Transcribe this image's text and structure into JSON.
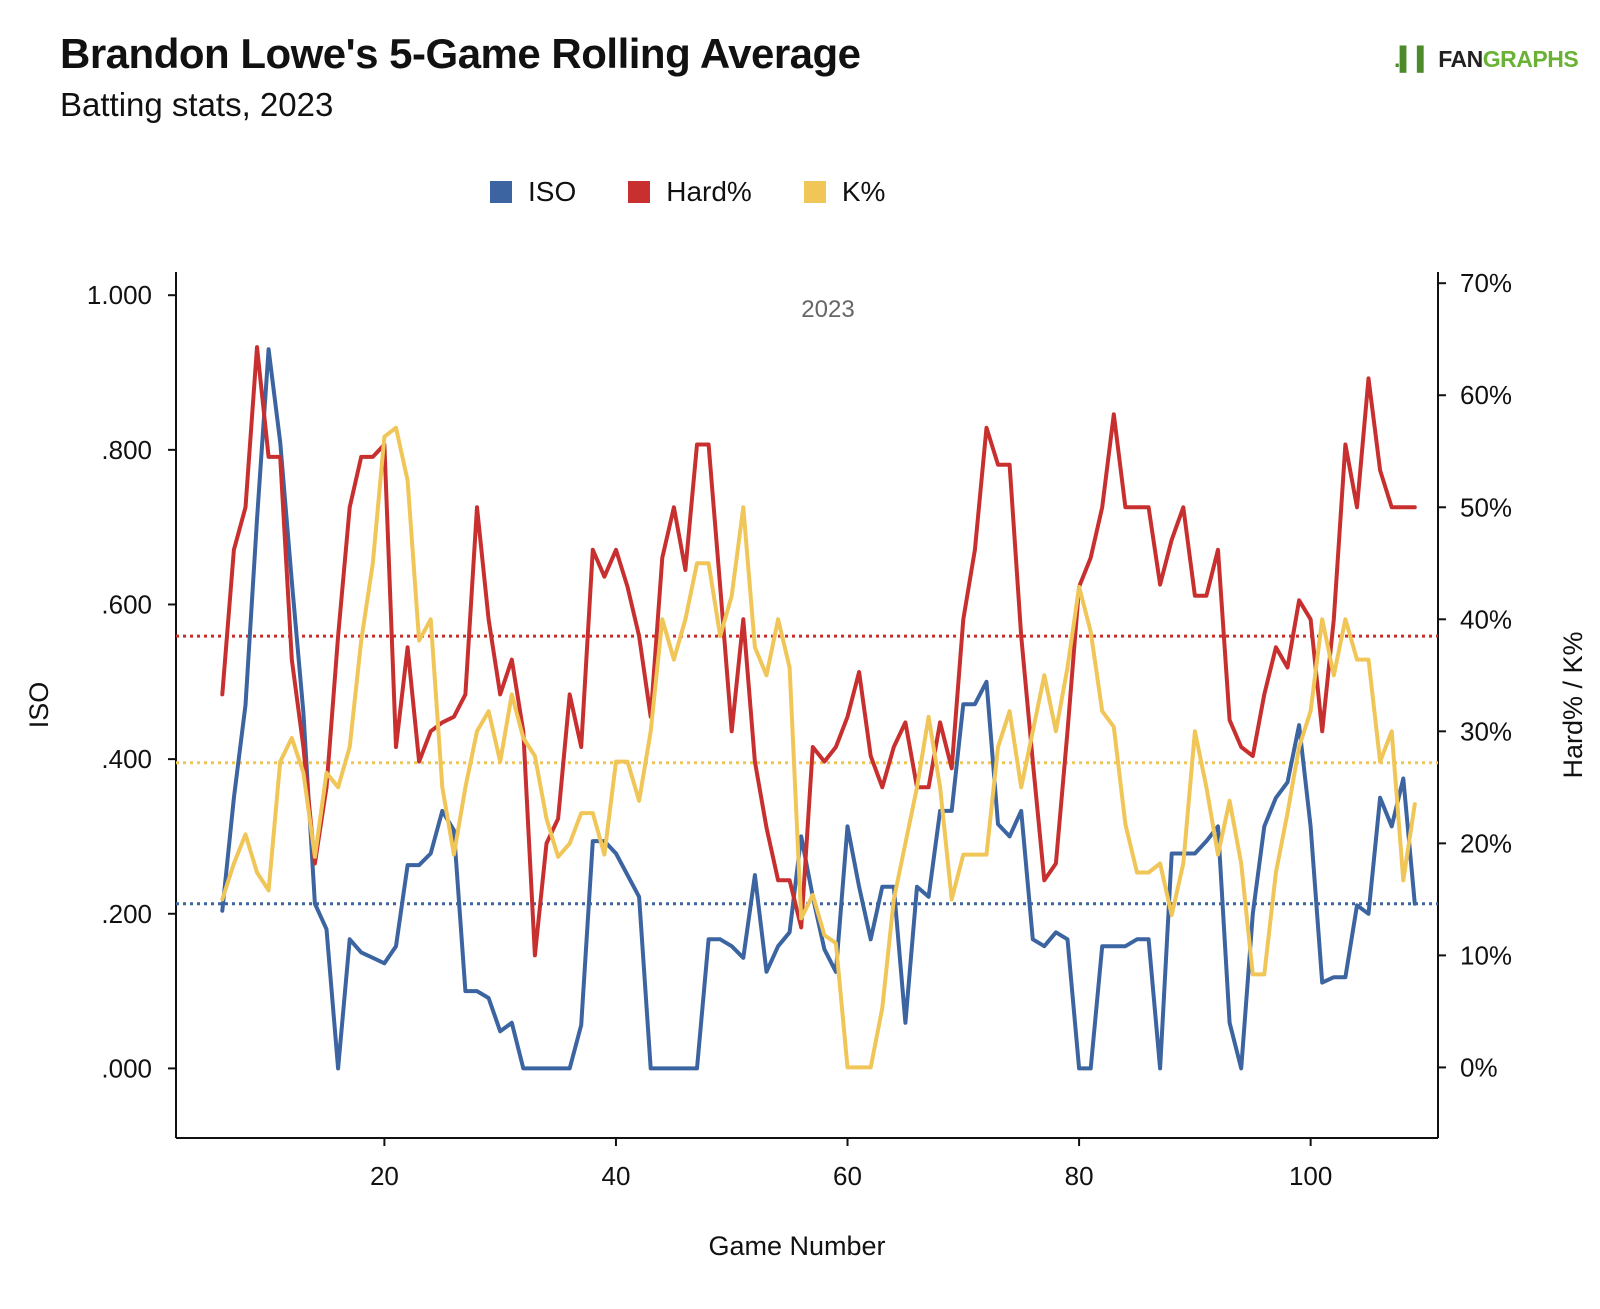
{
  "header": {
    "title": "Brandon Lowe's 5-Game Rolling Average",
    "subtitle": "Batting stats, 2023",
    "logo_mark": ".▍▍",
    "logo_fan": "FAN",
    "logo_graphs": "GRAPHS"
  },
  "colors": {
    "iso": "#3b64a0",
    "hard": "#c8302f",
    "k": "#f0c659"
  },
  "chart_data": {
    "type": "line",
    "title": "Brandon Lowe's 5-Game Rolling Average",
    "subtitle": "Batting stats, 2023",
    "annotation": "2023",
    "xlabel": "Game Number",
    "ylabel_left": "ISO",
    "ylabel_right": "Hard% / K%",
    "xlim": [
      2,
      111
    ],
    "ylim_left": [
      -0.09,
      1.03
    ],
    "ylim_right": [
      -6.3,
      71.0
    ],
    "x_ticks": [
      20,
      40,
      60,
      80,
      100
    ],
    "x_tick_labels": [
      "20",
      "40",
      "60",
      "80",
      "100"
    ],
    "y_left_ticks": [
      0,
      0.2,
      0.4,
      0.6,
      0.8,
      1.0
    ],
    "y_left_tick_labels": [
      ".000",
      ".200",
      ".400",
      ".600",
      ".800",
      "1.000"
    ],
    "y_right_ticks": [
      0,
      10,
      20,
      30,
      40,
      50,
      60,
      70
    ],
    "y_right_tick_labels": [
      "0%",
      "10%",
      "20%",
      "30%",
      "40%",
      "50%",
      "60%",
      "70%"
    ],
    "legend_position": "top-left",
    "x_start": 6,
    "series": [
      {
        "name": "ISO",
        "axis": "left",
        "reference_line": 0.213,
        "values": [
          0.204,
          0.35,
          0.47,
          0.71,
          0.93,
          0.81,
          0.63,
          0.46,
          0.213,
          0.18,
          0.0,
          0.167,
          0.15,
          0.143,
          0.136,
          0.158,
          0.263,
          0.263,
          0.278,
          0.333,
          0.308,
          0.1,
          0.1,
          0.091,
          0.048,
          0.059,
          0.0,
          0.0,
          0.0,
          0.0,
          0.0,
          0.056,
          0.294,
          0.294,
          0.278,
          0.25,
          0.222,
          0.0,
          0.0,
          0.0,
          0.0,
          0.0,
          0.167,
          0.167,
          0.158,
          0.143,
          0.25,
          0.125,
          0.158,
          0.176,
          0.3,
          0.222,
          0.154,
          0.125,
          0.313,
          0.235,
          0.167,
          0.235,
          0.235,
          0.059,
          0.235,
          0.222,
          0.333,
          0.333,
          0.471,
          0.471,
          0.5,
          0.316,
          0.3,
          0.333,
          0.167,
          0.158,
          0.176,
          0.167,
          0.0,
          0.0,
          0.158,
          0.158,
          0.158,
          0.167,
          0.167,
          0.0,
          0.278,
          0.278,
          0.278,
          0.294,
          0.313,
          0.059,
          0.0,
          0.2,
          0.313,
          0.35,
          0.37,
          0.444,
          0.313,
          0.111,
          0.118,
          0.118,
          0.211,
          0.2,
          0.35,
          0.313,
          0.375,
          0.213
        ]
      },
      {
        "name": "Hard%",
        "axis": "right",
        "reference_line": 38.5,
        "values": [
          33.3,
          46.2,
          50.0,
          64.3,
          54.5,
          54.5,
          36.4,
          28.6,
          18.2,
          25.0,
          38.5,
          50.0,
          54.5,
          54.5,
          55.6,
          28.6,
          37.5,
          27.3,
          30.0,
          30.8,
          31.3,
          33.3,
          50.0,
          40.0,
          33.3,
          36.4,
          30.0,
          10.0,
          20.0,
          22.2,
          33.3,
          28.6,
          46.2,
          43.8,
          46.2,
          42.9,
          38.5,
          31.3,
          45.5,
          50.0,
          44.4,
          55.6,
          55.6,
          42.9,
          30.0,
          40.0,
          27.3,
          21.4,
          16.7,
          16.7,
          12.5,
          28.6,
          27.3,
          28.6,
          31.3,
          35.3,
          27.8,
          25.0,
          28.6,
          30.8,
          25.0,
          25.0,
          30.8,
          26.7,
          40.0,
          46.2,
          57.1,
          53.8,
          53.8,
          38.5,
          27.3,
          16.7,
          18.2,
          30.0,
          42.9,
          45.5,
          50.0,
          58.3,
          50.0,
          50.0,
          50.0,
          43.1,
          47.1,
          50.0,
          42.1,
          42.1,
          46.2,
          31.0,
          28.6,
          27.8,
          33.3,
          37.5,
          35.7,
          41.7,
          40.0,
          30.0,
          40.0,
          55.6,
          50.0,
          61.5,
          53.3,
          50.0,
          50.0,
          50.0
        ]
      },
      {
        "name": "K%",
        "axis": "right",
        "reference_line": 27.2,
        "values": [
          15.0,
          18.2,
          20.8,
          17.4,
          15.8,
          27.3,
          29.4,
          26.3,
          18.8,
          26.3,
          25.0,
          28.6,
          38.1,
          45.0,
          56.3,
          57.1,
          52.4,
          38.1,
          40.0,
          25.0,
          19.0,
          25.0,
          30.0,
          31.8,
          27.3,
          33.3,
          29.4,
          27.8,
          22.2,
          18.8,
          20.0,
          22.7,
          22.7,
          19.0,
          27.3,
          27.3,
          23.8,
          30.0,
          40.0,
          36.4,
          40.0,
          45.0,
          45.0,
          38.5,
          42.1,
          50.0,
          37.5,
          35.0,
          40.0,
          35.7,
          13.3,
          15.4,
          11.8,
          11.1,
          0.0,
          0.0,
          0.0,
          5.3,
          15.0,
          20.0,
          25.0,
          31.3,
          25.0,
          15.0,
          19.0,
          19.0,
          19.0,
          28.6,
          31.8,
          25.0,
          30.0,
          35.0,
          30.0,
          35.7,
          42.9,
          38.9,
          31.8,
          30.4,
          21.7,
          17.4,
          17.4,
          18.2,
          13.6,
          18.2,
          30.0,
          25.0,
          19.0,
          23.8,
          18.2,
          8.3,
          8.3,
          17.4,
          22.7,
          28.6,
          31.8,
          40.0,
          35.0,
          40.0,
          36.4,
          36.4,
          27.3,
          30.0,
          16.7,
          23.5
        ]
      }
    ]
  }
}
